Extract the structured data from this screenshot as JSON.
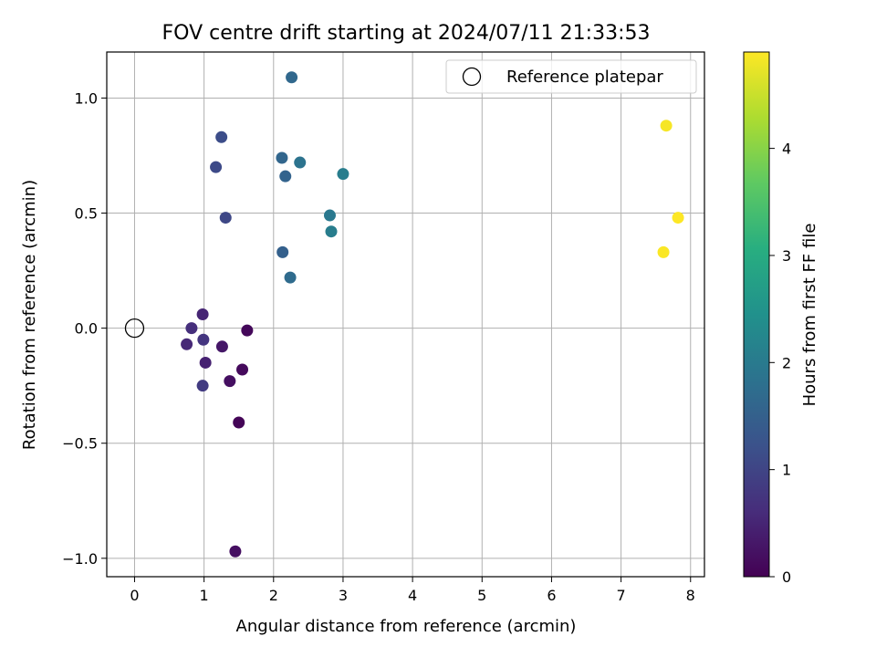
{
  "chart_data": {
    "type": "scatter",
    "title": "FOV centre drift starting at 2024/07/11 21:33:53",
    "xlabel": "Angular distance from reference (arcmin)",
    "ylabel": "Rotation from reference (arcmin)",
    "xlim": [
      -0.4,
      8.2
    ],
    "ylim": [
      -1.08,
      1.2
    ],
    "xticks": [
      0,
      1,
      2,
      3,
      4,
      5,
      6,
      7,
      8
    ],
    "xtick_labels": [
      "0",
      "1",
      "2",
      "3",
      "4",
      "5",
      "6",
      "7",
      "8"
    ],
    "yticks": [
      -1.0,
      -0.5,
      0.0,
      0.5,
      1.0
    ],
    "ytick_labels": [
      "−1.0",
      "−0.5",
      "0.0",
      "0.5",
      "1.0"
    ],
    "grid": true,
    "legend": {
      "placement": "top-right",
      "entries": [
        "Reference platepar"
      ]
    },
    "reference_point": {
      "x": 0,
      "y": 0,
      "label": "Reference platepar"
    },
    "colorbar": {
      "label": "Hours from first FF file",
      "range": [
        0,
        4.9
      ],
      "ticks": [
        0,
        1,
        2,
        3,
        4
      ],
      "tick_labels": [
        "0",
        "1",
        "2",
        "3",
        "4"
      ],
      "colormap": "viridis"
    },
    "points": [
      {
        "x": 1.45,
        "y": -0.97,
        "hours": 0.2
      },
      {
        "x": 1.5,
        "y": -0.41,
        "hours": 0.05
      },
      {
        "x": 1.62,
        "y": -0.01,
        "hours": 0.1
      },
      {
        "x": 1.55,
        "y": -0.18,
        "hours": 0.12
      },
      {
        "x": 1.37,
        "y": -0.23,
        "hours": 0.2
      },
      {
        "x": 1.26,
        "y": -0.08,
        "hours": 0.3
      },
      {
        "x": 1.02,
        "y": -0.15,
        "hours": 0.45
      },
      {
        "x": 0.98,
        "y": 0.06,
        "hours": 0.5
      },
      {
        "x": 0.75,
        "y": -0.07,
        "hours": 0.55
      },
      {
        "x": 0.82,
        "y": -0.0,
        "hours": 0.65
      },
      {
        "x": 0.99,
        "y": -0.05,
        "hours": 0.75
      },
      {
        "x": 0.98,
        "y": -0.25,
        "hours": 0.85
      },
      {
        "x": 1.31,
        "y": 0.48,
        "hours": 1.05
      },
      {
        "x": 1.17,
        "y": 0.7,
        "hours": 1.1
      },
      {
        "x": 1.25,
        "y": 0.83,
        "hours": 1.15
      },
      {
        "x": 2.13,
        "y": 0.33,
        "hours": 1.5
      },
      {
        "x": 2.17,
        "y": 0.66,
        "hours": 1.55
      },
      {
        "x": 2.12,
        "y": 0.74,
        "hours": 1.6
      },
      {
        "x": 2.26,
        "y": 1.09,
        "hours": 1.65
      },
      {
        "x": 2.24,
        "y": 0.22,
        "hours": 1.7
      },
      {
        "x": 2.38,
        "y": 0.72,
        "hours": 1.85
      },
      {
        "x": 2.81,
        "y": 0.49,
        "hours": 1.95
      },
      {
        "x": 2.83,
        "y": 0.42,
        "hours": 2.05
      },
      {
        "x": 3.0,
        "y": 0.67,
        "hours": 2.05
      },
      {
        "x": 7.65,
        "y": 0.88,
        "hours": 4.85
      },
      {
        "x": 7.61,
        "y": 0.33,
        "hours": 4.88
      },
      {
        "x": 7.82,
        "y": 0.48,
        "hours": 4.9
      }
    ]
  }
}
